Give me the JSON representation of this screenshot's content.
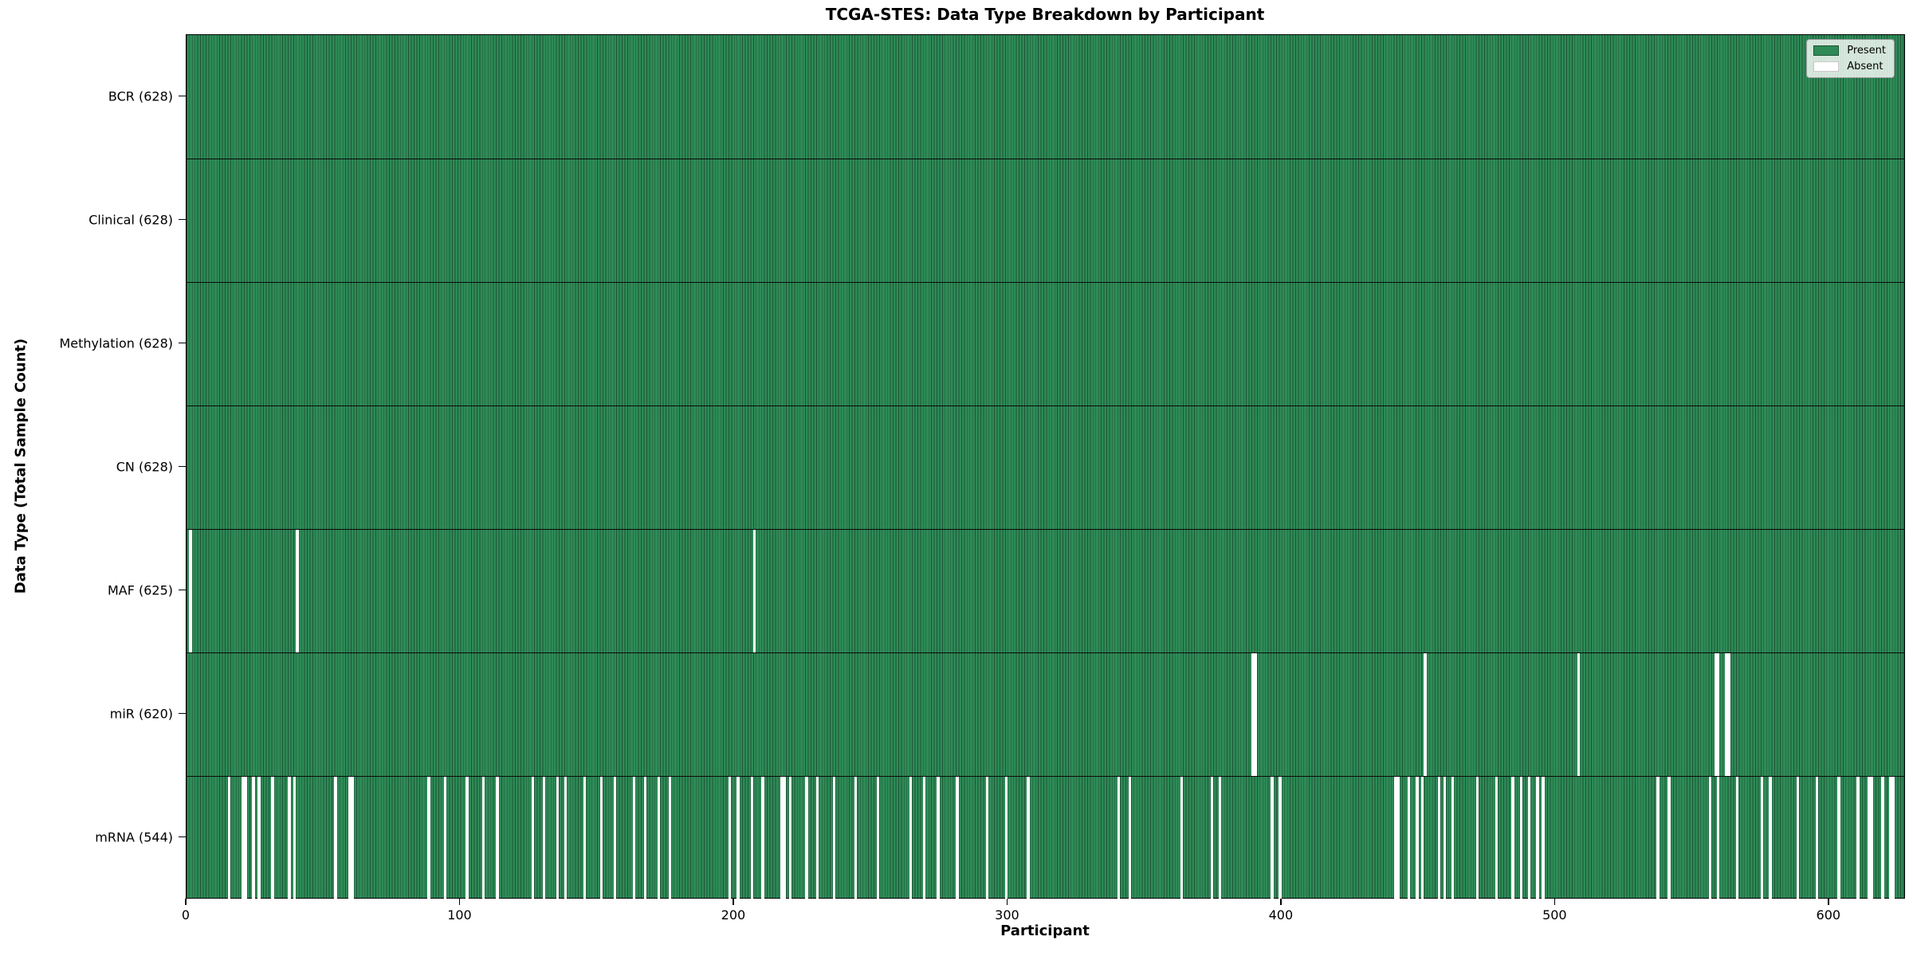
{
  "title": "TCGA-STES: Data Type Breakdown by Participant",
  "axes": {
    "xlabel": "Participant",
    "ylabel": "Data Type (Total Sample Count)"
  },
  "legend": {
    "items": [
      {
        "label": "Present",
        "color": "#2e8b57",
        "edge": "#1d5436"
      },
      {
        "label": "Absent",
        "color": "#ffffff",
        "edge": "#c8c8c8"
      }
    ]
  },
  "chart_data": {
    "type": "heatmap",
    "title": "TCGA-STES: Data Type Breakdown by Participant",
    "xlabel": "Participant",
    "ylabel": "Data Type (Total Sample Count)",
    "n_participants": 628,
    "x_ticks": [
      0,
      100,
      200,
      300,
      400,
      500,
      600
    ],
    "legend": [
      "Present",
      "Absent"
    ],
    "legend_position": "upper right",
    "colors": {
      "present": "#2e8b57",
      "present_edge": "#1d5436",
      "absent": "#ffffff",
      "divider": "#0a0a0a"
    },
    "rows": [
      {
        "name": "BCR",
        "count": 628,
        "label": "BCR (628)",
        "absent": []
      },
      {
        "name": "Clinical",
        "count": 628,
        "label": "Clinical (628)",
        "absent": []
      },
      {
        "name": "Methylation",
        "count": 628,
        "label": "Methylation (628)",
        "absent": []
      },
      {
        "name": "CN",
        "count": 628,
        "label": "CN (628)",
        "absent": []
      },
      {
        "name": "MAF",
        "count": 625,
        "label": "MAF (625)",
        "absent": [
          1,
          40,
          207
        ]
      },
      {
        "name": "miR",
        "count": 620,
        "label": "miR (620)",
        "absent": [
          389,
          390,
          452,
          508,
          558,
          559,
          562,
          563
        ]
      },
      {
        "name": "mRNA",
        "count": 544,
        "label": "mRNA (544)",
        "absent": [
          15,
          20,
          21,
          24,
          26,
          31,
          37,
          39,
          54,
          59,
          60,
          88,
          94,
          102,
          108,
          113,
          126,
          130,
          135,
          138,
          145,
          151,
          156,
          163,
          167,
          172,
          176,
          198,
          201,
          206,
          210,
          217,
          218,
          220,
          226,
          230,
          236,
          244,
          252,
          264,
          269,
          274,
          281,
          292,
          299,
          307,
          340,
          344,
          363,
          374,
          377,
          396,
          399,
          441,
          442,
          446,
          449,
          451,
          457,
          459,
          462,
          471,
          478,
          484,
          487,
          490,
          493,
          495,
          537,
          541,
          556,
          559,
          566,
          575,
          578,
          588,
          595,
          603,
          610,
          614,
          615,
          619,
          622,
          623
        ]
      }
    ]
  }
}
